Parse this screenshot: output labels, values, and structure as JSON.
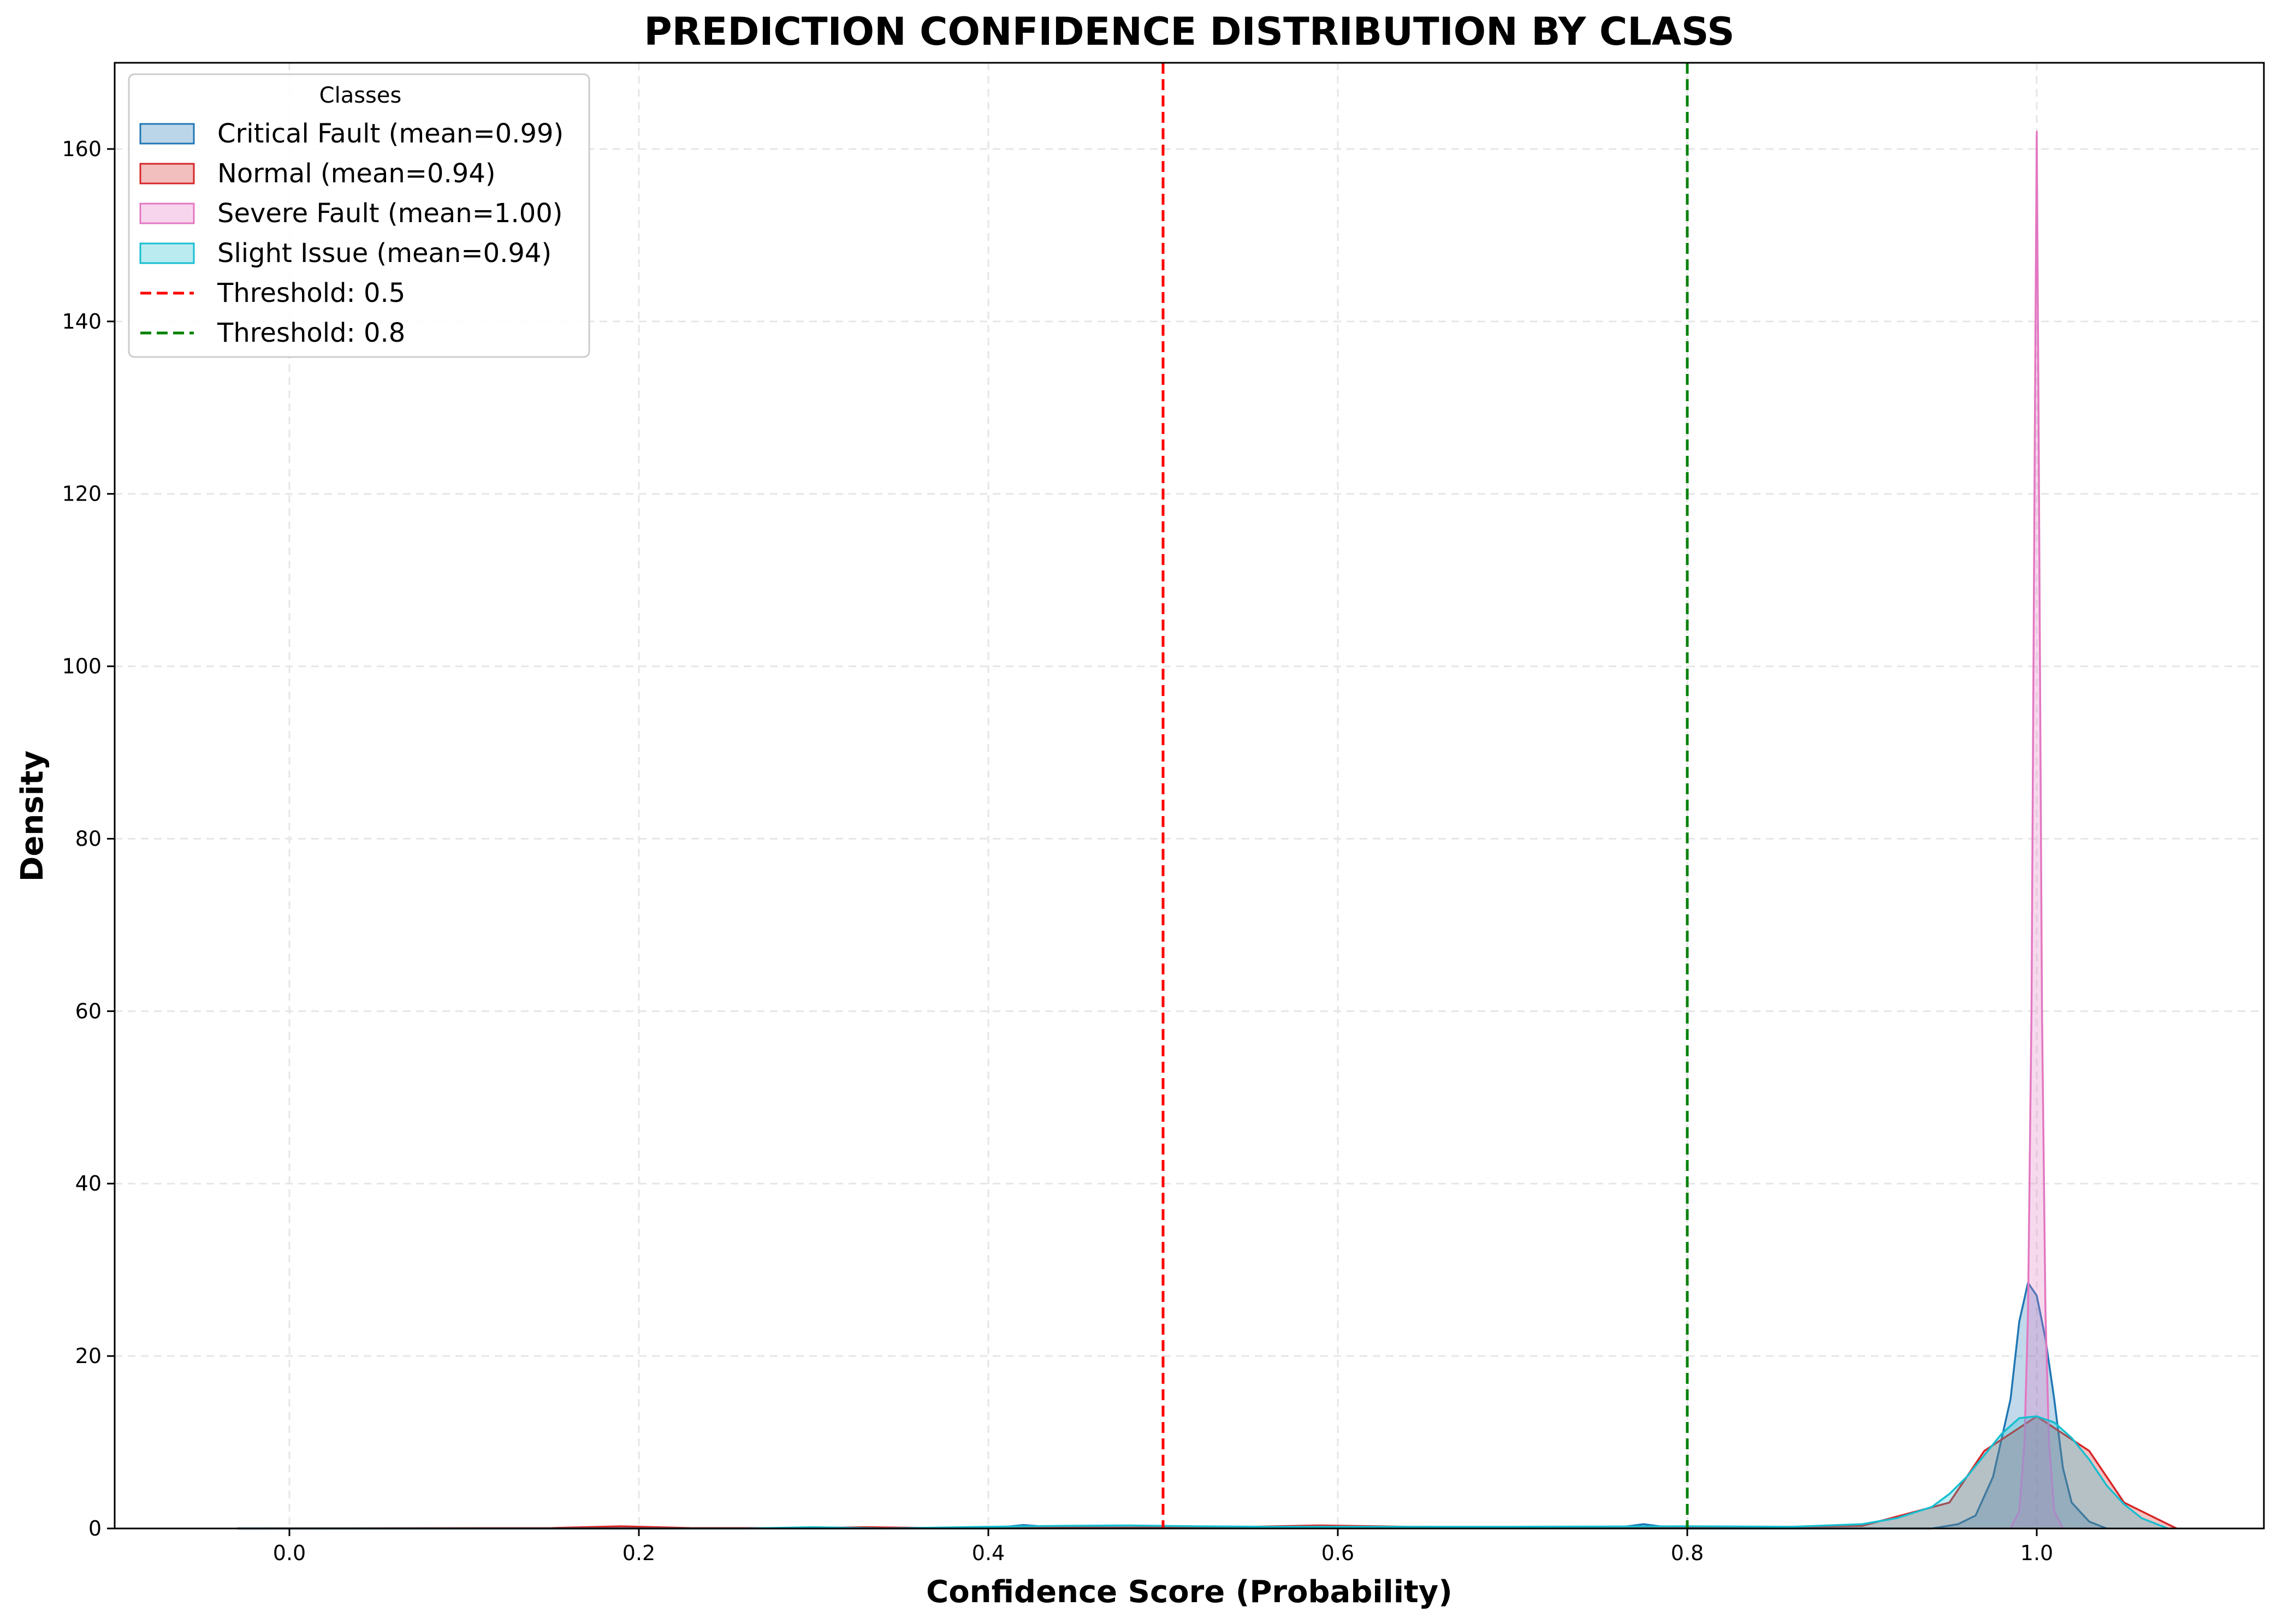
{
  "chart_data": {
    "type": "area",
    "title": "PREDICTION CONFIDENCE DISTRIBUTION BY CLASS",
    "xlabel": "Confidence Score (Probability)",
    "ylabel": "Density",
    "xlim": [
      -0.1,
      1.13
    ],
    "ylim": [
      0,
      170
    ],
    "xticks": [
      0.0,
      0.2,
      0.4,
      0.6,
      0.8,
      1.0
    ],
    "xtick_labels": [
      "0.0",
      "0.2",
      "0.4",
      "0.6",
      "0.8",
      "1.0"
    ],
    "yticks": [
      0,
      20,
      40,
      60,
      80,
      100,
      120,
      140,
      160
    ],
    "ytick_labels": [
      "0",
      "20",
      "40",
      "60",
      "80",
      "100",
      "120",
      "140",
      "160"
    ],
    "grid": true,
    "legend": {
      "title": "Classes",
      "placement": "top-left",
      "entries": [
        "Critical Fault (mean=0.99)",
        "Normal (mean=0.94)",
        "Severe Fault (mean=1.00)",
        "Slight Issue (mean=0.94)",
        "Threshold: 0.5",
        "Threshold: 0.8"
      ]
    },
    "series": [
      {
        "name": "Critical Fault (mean=0.99)",
        "color": "#1f77b4",
        "fill": "#1f77b4",
        "x": [
          -0.03,
          0.4,
          0.42,
          0.44,
          0.5,
          0.76,
          0.775,
          0.79,
          0.8,
          0.94,
          0.955,
          0.965,
          0.975,
          0.985,
          0.99,
          0.995,
          1.0,
          1.005,
          1.01,
          1.015,
          1.02,
          1.03,
          1.04
        ],
        "y": [
          0,
          0,
          0.4,
          0.1,
          0.1,
          0.1,
          0.5,
          0.1,
          0,
          0,
          0.5,
          1.5,
          6,
          15,
          24,
          28.5,
          27,
          22,
          15,
          7,
          3,
          0.8,
          0
        ]
      },
      {
        "name": "Normal (mean=0.94)",
        "color": "#d62728",
        "fill": "#d62728",
        "x": [
          -0.03,
          0.15,
          0.19,
          0.23,
          0.3,
          0.33,
          0.37,
          0.5,
          0.55,
          0.59,
          0.64,
          0.68,
          0.72,
          0.76,
          0.8,
          0.9,
          0.95,
          0.97,
          1.0,
          1.03,
          1.05,
          1.08
        ],
        "y": [
          0,
          0.05,
          0.25,
          0.05,
          0.05,
          0.15,
          0.05,
          0.1,
          0.2,
          0.35,
          0.2,
          0.15,
          0.2,
          0.05,
          0.05,
          0.3,
          3,
          9,
          13,
          9,
          3,
          0
        ]
      },
      {
        "name": "Severe Fault (mean=1.00)",
        "color": "#e377c2",
        "fill": "#e377c2",
        "x": [
          0.985,
          0.99,
          0.993,
          0.995,
          0.997,
          0.999,
          1.0,
          1.001,
          1.003,
          1.005,
          1.007,
          1.01,
          1.015
        ],
        "y": [
          0,
          2,
          10,
          25,
          60,
          130,
          162,
          130,
          60,
          25,
          10,
          2,
          0
        ]
      },
      {
        "name": "Slight Issue (mean=0.94)",
        "color": "#17becf",
        "fill": "#17becf",
        "x": [
          -0.03,
          0.26,
          0.3,
          0.34,
          0.4,
          0.44,
          0.48,
          0.52,
          0.56,
          0.6,
          0.7,
          0.8,
          0.86,
          0.9,
          0.92,
          0.94,
          0.95,
          0.96,
          0.97,
          0.98,
          0.99,
          1.0,
          1.01,
          1.02,
          1.03,
          1.04,
          1.05,
          1.06,
          1.075
        ],
        "y": [
          0,
          0,
          0.15,
          0,
          0.2,
          0.3,
          0.35,
          0.25,
          0.2,
          0.2,
          0.2,
          0.25,
          0.2,
          0.5,
          1.2,
          2.5,
          4,
          6,
          8.5,
          11,
          12.8,
          13,
          12.3,
          10.5,
          8,
          5,
          2.8,
          1.2,
          0
        ]
      }
    ],
    "thresholds": [
      {
        "name": "Threshold: 0.5",
        "x": 0.5,
        "color": "#ff0000"
      },
      {
        "name": "Threshold: 0.8",
        "x": 0.8,
        "color": "#008000"
      }
    ]
  }
}
